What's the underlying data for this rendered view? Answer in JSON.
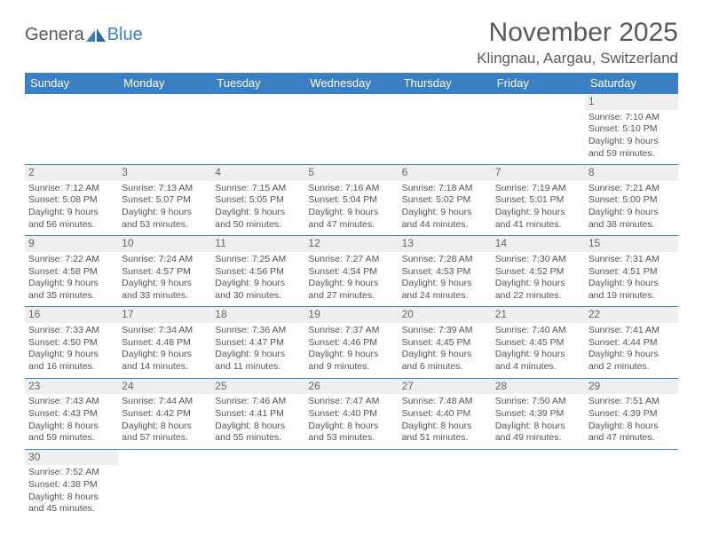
{
  "logo": {
    "part1": "Genera",
    "part2": "Blue"
  },
  "title": "November 2025",
  "location": "Klingnau, Aargau, Switzerland",
  "colors": {
    "header_bg": "#3b7fc4",
    "header_text": "#ffffff",
    "border": "#3b7fc4",
    "text": "#555555",
    "daynum_bg": "#efefef",
    "page_bg": "#ffffff"
  },
  "weekdays": [
    "Sunday",
    "Monday",
    "Tuesday",
    "Wednesday",
    "Thursday",
    "Friday",
    "Saturday"
  ],
  "weeks": [
    [
      null,
      null,
      null,
      null,
      null,
      null,
      {
        "n": "1",
        "sr": "Sunrise: 7:10 AM",
        "ss": "Sunset: 5:10 PM",
        "dl": "Daylight: 9 hours and 59 minutes."
      }
    ],
    [
      {
        "n": "2",
        "sr": "Sunrise: 7:12 AM",
        "ss": "Sunset: 5:08 PM",
        "dl": "Daylight: 9 hours and 56 minutes."
      },
      {
        "n": "3",
        "sr": "Sunrise: 7:13 AM",
        "ss": "Sunset: 5:07 PM",
        "dl": "Daylight: 9 hours and 53 minutes."
      },
      {
        "n": "4",
        "sr": "Sunrise: 7:15 AM",
        "ss": "Sunset: 5:05 PM",
        "dl": "Daylight: 9 hours and 50 minutes."
      },
      {
        "n": "5",
        "sr": "Sunrise: 7:16 AM",
        "ss": "Sunset: 5:04 PM",
        "dl": "Daylight: 9 hours and 47 minutes."
      },
      {
        "n": "6",
        "sr": "Sunrise: 7:18 AM",
        "ss": "Sunset: 5:02 PM",
        "dl": "Daylight: 9 hours and 44 minutes."
      },
      {
        "n": "7",
        "sr": "Sunrise: 7:19 AM",
        "ss": "Sunset: 5:01 PM",
        "dl": "Daylight: 9 hours and 41 minutes."
      },
      {
        "n": "8",
        "sr": "Sunrise: 7:21 AM",
        "ss": "Sunset: 5:00 PM",
        "dl": "Daylight: 9 hours and 38 minutes."
      }
    ],
    [
      {
        "n": "9",
        "sr": "Sunrise: 7:22 AM",
        "ss": "Sunset: 4:58 PM",
        "dl": "Daylight: 9 hours and 35 minutes."
      },
      {
        "n": "10",
        "sr": "Sunrise: 7:24 AM",
        "ss": "Sunset: 4:57 PM",
        "dl": "Daylight: 9 hours and 33 minutes."
      },
      {
        "n": "11",
        "sr": "Sunrise: 7:25 AM",
        "ss": "Sunset: 4:56 PM",
        "dl": "Daylight: 9 hours and 30 minutes."
      },
      {
        "n": "12",
        "sr": "Sunrise: 7:27 AM",
        "ss": "Sunset: 4:54 PM",
        "dl": "Daylight: 9 hours and 27 minutes."
      },
      {
        "n": "13",
        "sr": "Sunrise: 7:28 AM",
        "ss": "Sunset: 4:53 PM",
        "dl": "Daylight: 9 hours and 24 minutes."
      },
      {
        "n": "14",
        "sr": "Sunrise: 7:30 AM",
        "ss": "Sunset: 4:52 PM",
        "dl": "Daylight: 9 hours and 22 minutes."
      },
      {
        "n": "15",
        "sr": "Sunrise: 7:31 AM",
        "ss": "Sunset: 4:51 PM",
        "dl": "Daylight: 9 hours and 19 minutes."
      }
    ],
    [
      {
        "n": "16",
        "sr": "Sunrise: 7:33 AM",
        "ss": "Sunset: 4:50 PM",
        "dl": "Daylight: 9 hours and 16 minutes."
      },
      {
        "n": "17",
        "sr": "Sunrise: 7:34 AM",
        "ss": "Sunset: 4:48 PM",
        "dl": "Daylight: 9 hours and 14 minutes."
      },
      {
        "n": "18",
        "sr": "Sunrise: 7:36 AM",
        "ss": "Sunset: 4:47 PM",
        "dl": "Daylight: 9 hours and 11 minutes."
      },
      {
        "n": "19",
        "sr": "Sunrise: 7:37 AM",
        "ss": "Sunset: 4:46 PM",
        "dl": "Daylight: 9 hours and 9 minutes."
      },
      {
        "n": "20",
        "sr": "Sunrise: 7:39 AM",
        "ss": "Sunset: 4:45 PM",
        "dl": "Daylight: 9 hours and 6 minutes."
      },
      {
        "n": "21",
        "sr": "Sunrise: 7:40 AM",
        "ss": "Sunset: 4:45 PM",
        "dl": "Daylight: 9 hours and 4 minutes."
      },
      {
        "n": "22",
        "sr": "Sunrise: 7:41 AM",
        "ss": "Sunset: 4:44 PM",
        "dl": "Daylight: 9 hours and 2 minutes."
      }
    ],
    [
      {
        "n": "23",
        "sr": "Sunrise: 7:43 AM",
        "ss": "Sunset: 4:43 PM",
        "dl": "Daylight: 8 hours and 59 minutes."
      },
      {
        "n": "24",
        "sr": "Sunrise: 7:44 AM",
        "ss": "Sunset: 4:42 PM",
        "dl": "Daylight: 8 hours and 57 minutes."
      },
      {
        "n": "25",
        "sr": "Sunrise: 7:46 AM",
        "ss": "Sunset: 4:41 PM",
        "dl": "Daylight: 8 hours and 55 minutes."
      },
      {
        "n": "26",
        "sr": "Sunrise: 7:47 AM",
        "ss": "Sunset: 4:40 PM",
        "dl": "Daylight: 8 hours and 53 minutes."
      },
      {
        "n": "27",
        "sr": "Sunrise: 7:48 AM",
        "ss": "Sunset: 4:40 PM",
        "dl": "Daylight: 8 hours and 51 minutes."
      },
      {
        "n": "28",
        "sr": "Sunrise: 7:50 AM",
        "ss": "Sunset: 4:39 PM",
        "dl": "Daylight: 8 hours and 49 minutes."
      },
      {
        "n": "29",
        "sr": "Sunrise: 7:51 AM",
        "ss": "Sunset: 4:39 PM",
        "dl": "Daylight: 8 hours and 47 minutes."
      }
    ],
    [
      {
        "n": "30",
        "sr": "Sunrise: 7:52 AM",
        "ss": "Sunset: 4:38 PM",
        "dl": "Daylight: 8 hours and 45 minutes."
      },
      null,
      null,
      null,
      null,
      null,
      null
    ]
  ]
}
